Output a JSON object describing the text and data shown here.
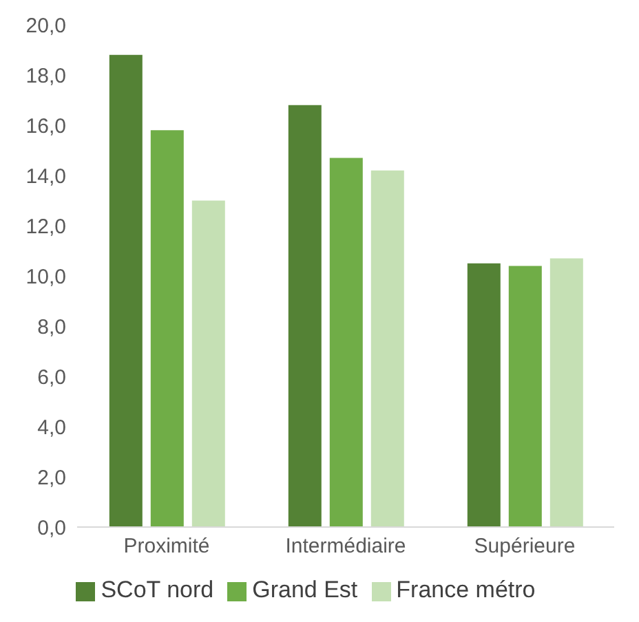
{
  "chart_data": {
    "type": "bar",
    "categories": [
      "Proximité",
      "Intermédiaire",
      "Supérieure"
    ],
    "series": [
      {
        "name": "SCoT nord",
        "color": "#548235",
        "values": [
          18.8,
          16.8,
          10.5
        ]
      },
      {
        "name": "Grand Est",
        "color": "#70ad47",
        "values": [
          15.8,
          14.7,
          10.4
        ]
      },
      {
        "name": "France métro",
        "color": "#c5e0b4",
        "values": [
          13.0,
          14.2,
          10.7
        ]
      }
    ],
    "ylim": [
      0,
      20
    ],
    "yticks": [
      {
        "value": 0,
        "label": "0,0"
      },
      {
        "value": 2,
        "label": "2,0"
      },
      {
        "value": 4,
        "label": "4,0"
      },
      {
        "value": 6,
        "label": "6,0"
      },
      {
        "value": 8,
        "label": "8,0"
      },
      {
        "value": 10,
        "label": "10,0"
      },
      {
        "value": 12,
        "label": "12,0"
      },
      {
        "value": 14,
        "label": "14,0"
      },
      {
        "value": 16,
        "label": "16,0"
      },
      {
        "value": 18,
        "label": "18,0"
      },
      {
        "value": 20,
        "label": "20,0"
      }
    ],
    "grid": false,
    "legend": "bottom"
  }
}
